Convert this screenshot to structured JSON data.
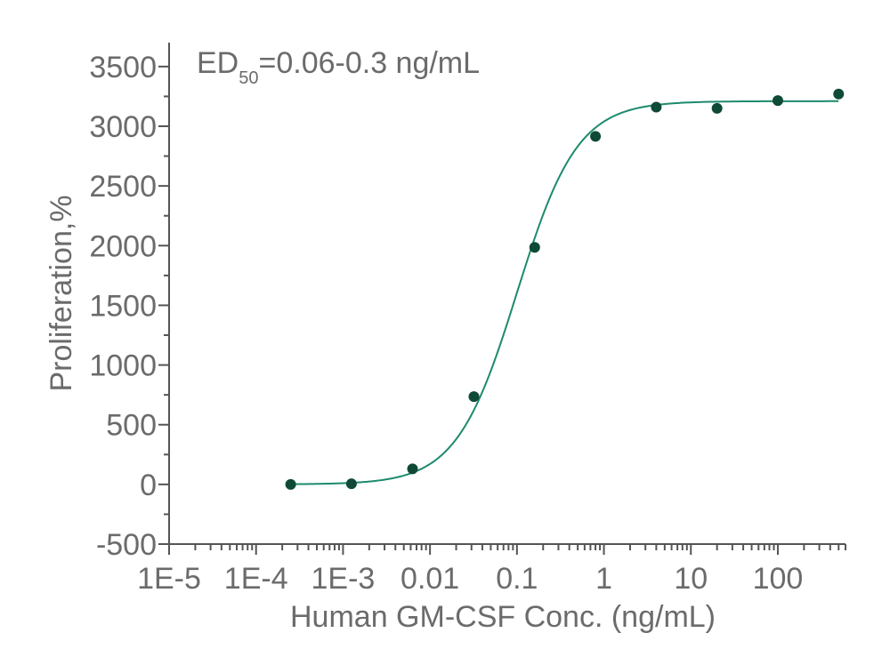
{
  "chart_data": {
    "type": "scatter",
    "title": "",
    "xlabel": "Human GM-CSF Conc. (ng/mL)",
    "ylabel": "Proliferation,%",
    "x_scale": "log",
    "xlim": [
      1e-05,
      600
    ],
    "ylim": [
      -500,
      3700
    ],
    "x_ticks": [
      {
        "value": 1e-05,
        "label": "1E-5"
      },
      {
        "value": 0.0001,
        "label": "1E-4"
      },
      {
        "value": 0.001,
        "label": "1E-3"
      },
      {
        "value": 0.01,
        "label": "0.01"
      },
      {
        "value": 0.1,
        "label": "0.1"
      },
      {
        "value": 1,
        "label": "1"
      },
      {
        "value": 10,
        "label": "10"
      },
      {
        "value": 100,
        "label": "100"
      }
    ],
    "y_ticks": [
      -500,
      0,
      500,
      1000,
      1500,
      2000,
      2500,
      3000,
      3500
    ],
    "annotation": {
      "main": "ED",
      "sub": "50",
      "rest": "=0.06-0.3 ng/mL"
    },
    "grid": false,
    "colors": {
      "points": "#0e4a36",
      "curve": "#1d8a6e",
      "axis": "#555555",
      "text": "#6b6b6b"
    },
    "points": {
      "x": [
        0.00025,
        0.00125,
        0.0063,
        0.032,
        0.16,
        0.8,
        4,
        20,
        100,
        500
      ],
      "y": [
        0,
        5,
        130,
        735,
        1985,
        2915,
        3160,
        3150,
        3215,
        3270
      ]
    },
    "fit": {
      "model": "4PL",
      "bottom": 0,
      "top": 3210,
      "ec50": 0.1,
      "hill": 1.25
    }
  }
}
